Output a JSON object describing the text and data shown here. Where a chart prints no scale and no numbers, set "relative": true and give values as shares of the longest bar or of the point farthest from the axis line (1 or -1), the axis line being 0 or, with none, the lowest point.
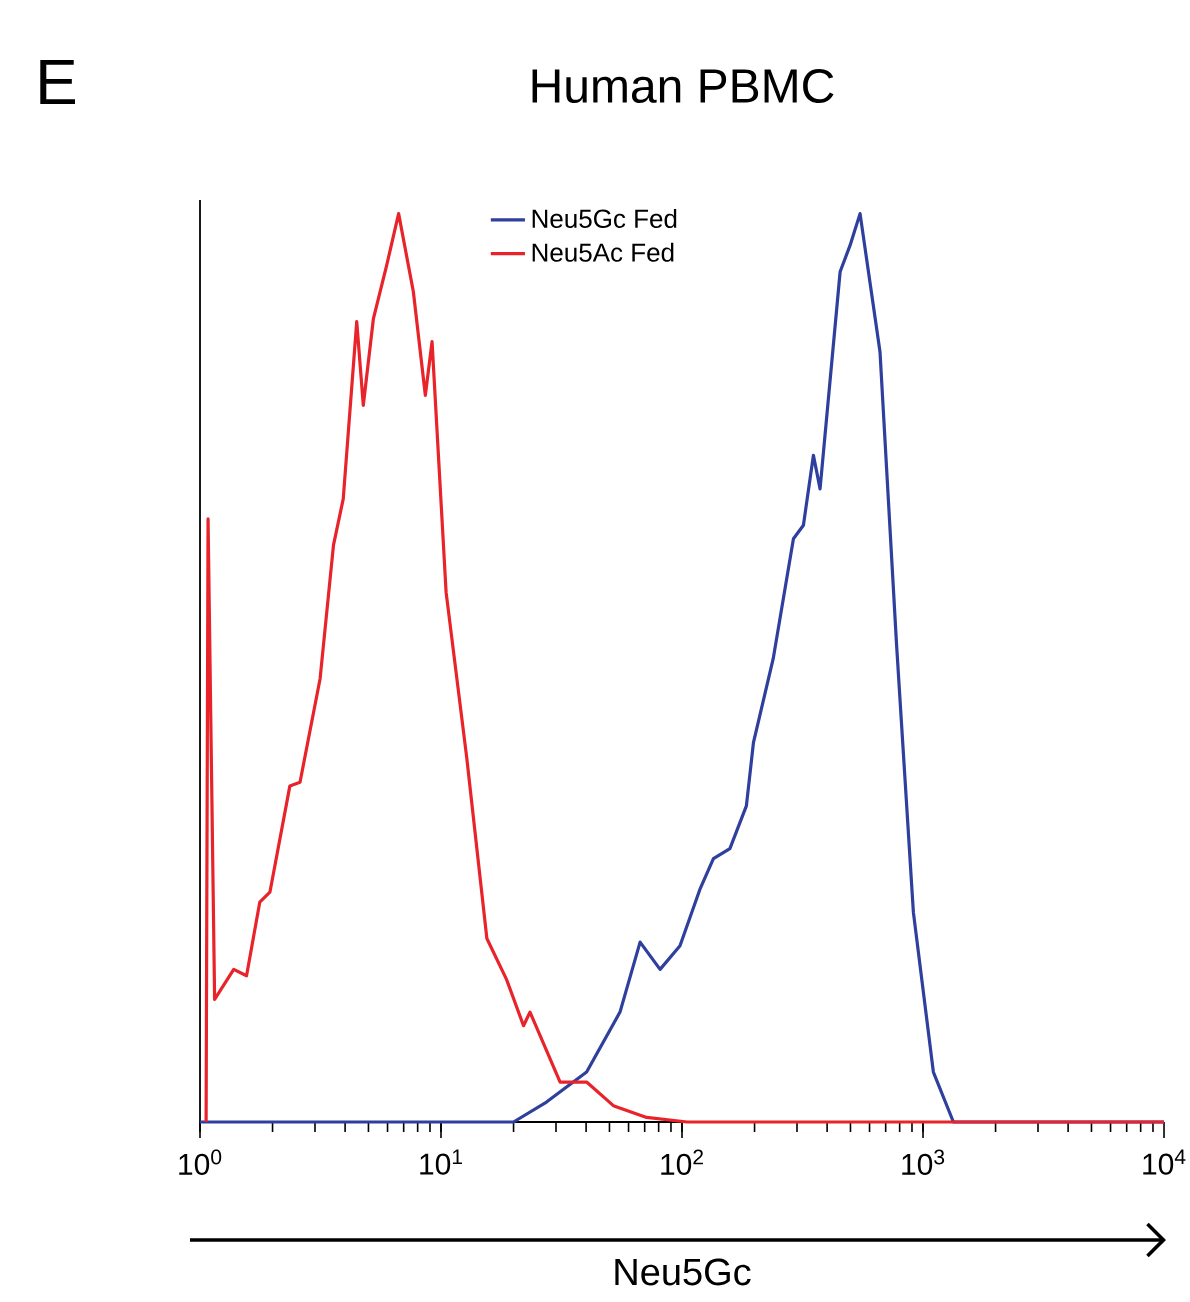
{
  "chart_data": {
    "type": "line",
    "title": "Human PBMC",
    "xlabel": "Neu5Gc",
    "annotations": [
      "E"
    ],
    "relative": true,
    "log": "x",
    "xlim": [
      1,
      10000
    ],
    "xticks": [
      {
        "value": 1,
        "label": "10$^{0}$"
      },
      {
        "value": 10,
        "label": "10$^{1}$"
      },
      {
        "value": 100,
        "label": "10$^{2}$"
      },
      {
        "value": 1000,
        "label": "10$^{3}$"
      },
      {
        "value": 10000,
        "label": "10$^{4}$"
      }
    ],
    "tick_labels": "x",
    "legend": "top",
    "marker": "none",
    "line_style": "solid",
    "series": [
      {
        "name": "Neu5Gc Fed",
        "color": "#2e3f9e",
        "x": [
          1,
          20.0,
          27.4,
          40.2,
          55.3,
          67.0,
          81.1,
          98.1,
          119,
          135,
          158,
          185,
          198,
          239,
          290,
          319,
          351,
          374,
          453,
          498,
          548,
          663,
          777,
          912,
          1104,
          1337,
          10000
        ],
        "values": [
          0,
          0,
          0.022,
          0.055,
          0.121,
          0.198,
          0.168,
          0.194,
          0.257,
          0.29,
          0.301,
          0.348,
          0.418,
          0.51,
          0.642,
          0.657,
          0.734,
          0.697,
          0.936,
          0.965,
          1.0,
          0.848,
          0.525,
          0.231,
          0.055,
          0,
          0
        ]
      },
      {
        "name": "Neu5Ac Fed",
        "color": "#e8232a",
        "x": [
          1.06,
          1.08,
          1.15,
          1.38,
          1.56,
          1.77,
          1.95,
          2.36,
          2.6,
          3.15,
          3.58,
          3.93,
          4.47,
          4.76,
          5.24,
          5.95,
          6.67,
          7.68,
          8.61,
          9.18,
          10.5,
          12.8,
          15.5,
          18.7,
          22.0,
          23.4,
          31.2,
          40.2,
          51.9,
          71.3,
          105,
          10000
        ],
        "values": [
          0,
          0.664,
          0.135,
          0.168,
          0.161,
          0.242,
          0.253,
          0.37,
          0.374,
          0.488,
          0.635,
          0.686,
          0.881,
          0.789,
          0.884,
          0.943,
          1.0,
          0.914,
          0.8,
          0.859,
          0.583,
          0.4,
          0.202,
          0.157,
          0.106,
          0.121,
          0.044,
          0.044,
          0.018,
          0.005,
          0,
          0
        ]
      }
    ]
  }
}
